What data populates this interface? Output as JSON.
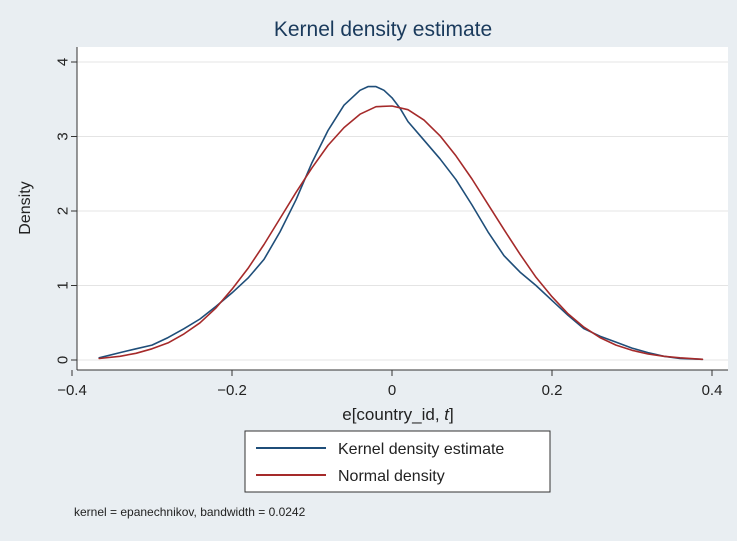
{
  "chart_data": {
    "type": "line",
    "title": "Kernel density estimate",
    "xlabel": "e[country_id, t]",
    "xlabel_parts": [
      "e[country_id, ",
      "t",
      "]"
    ],
    "ylabel": "Density",
    "xlim": [
      -0.4,
      0.4
    ],
    "ylim": [
      0,
      4
    ],
    "xticks": [
      -0.4,
      -0.2,
      0,
      0.2,
      0.4
    ],
    "xtick_labels": [
      "−0.4",
      "−0.2",
      "0",
      "0.2",
      "0.4"
    ],
    "yticks": [
      0,
      1,
      2,
      3,
      4
    ],
    "ytick_labels": [
      "0",
      "1",
      "2",
      "3",
      "4"
    ],
    "grid": true,
    "legend_position": "bottom",
    "note": "kernel = epanechnikov, bandwidth = 0.0242",
    "series": [
      {
        "name": "Kernel density estimate",
        "color": "#1f4e79",
        "x": [
          -0.366,
          -0.34,
          -0.32,
          -0.3,
          -0.28,
          -0.26,
          -0.24,
          -0.22,
          -0.2,
          -0.18,
          -0.16,
          -0.14,
          -0.12,
          -0.1,
          -0.08,
          -0.06,
          -0.04,
          -0.03,
          -0.02,
          -0.01,
          0.0,
          0.01,
          0.02,
          0.04,
          0.06,
          0.08,
          0.1,
          0.12,
          0.14,
          0.16,
          0.18,
          0.2,
          0.22,
          0.24,
          0.26,
          0.28,
          0.3,
          0.32,
          0.34,
          0.36,
          0.388
        ],
        "y": [
          0.03,
          0.1,
          0.15,
          0.2,
          0.3,
          0.42,
          0.55,
          0.72,
          0.9,
          1.1,
          1.35,
          1.72,
          2.15,
          2.65,
          3.08,
          3.42,
          3.62,
          3.67,
          3.67,
          3.62,
          3.52,
          3.38,
          3.2,
          2.95,
          2.7,
          2.42,
          2.08,
          1.72,
          1.4,
          1.18,
          1.0,
          0.8,
          0.6,
          0.42,
          0.32,
          0.24,
          0.16,
          0.1,
          0.05,
          0.02,
          0.01
        ]
      },
      {
        "name": "Normal density",
        "color": "#a52a2a",
        "x": [
          -0.366,
          -0.34,
          -0.32,
          -0.3,
          -0.28,
          -0.26,
          -0.24,
          -0.22,
          -0.2,
          -0.18,
          -0.16,
          -0.14,
          -0.12,
          -0.1,
          -0.08,
          -0.06,
          -0.04,
          -0.02,
          0.0,
          0.02,
          0.04,
          0.06,
          0.08,
          0.1,
          0.12,
          0.14,
          0.16,
          0.18,
          0.2,
          0.22,
          0.24,
          0.26,
          0.28,
          0.3,
          0.32,
          0.34,
          0.36,
          0.388
        ],
        "y": [
          0.02,
          0.05,
          0.09,
          0.15,
          0.23,
          0.35,
          0.5,
          0.7,
          0.95,
          1.23,
          1.55,
          1.9,
          2.25,
          2.58,
          2.88,
          3.12,
          3.3,
          3.4,
          3.41,
          3.36,
          3.22,
          3.01,
          2.74,
          2.43,
          2.09,
          1.75,
          1.42,
          1.11,
          0.85,
          0.62,
          0.44,
          0.3,
          0.2,
          0.13,
          0.08,
          0.05,
          0.03,
          0.01
        ]
      }
    ]
  }
}
